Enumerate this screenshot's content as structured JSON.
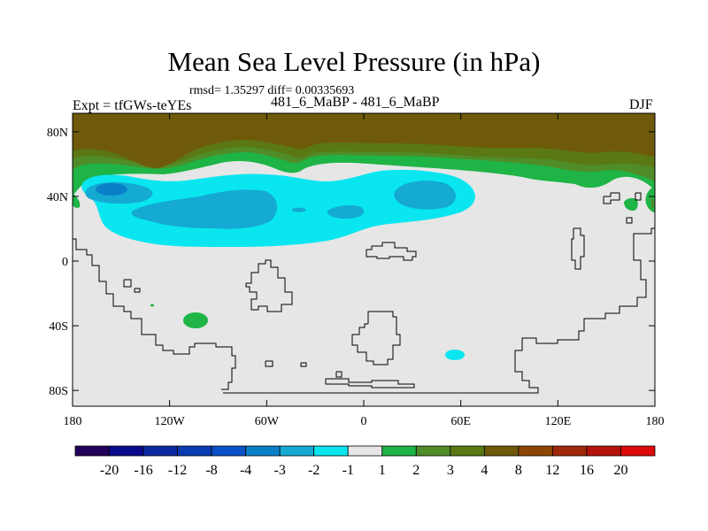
{
  "title": "Mean Sea Level Pressure (in hPa)",
  "stats": "rmsd= 1.35297 diff= 0.00335693",
  "expt": "Expt = tfGWs-teYEs",
  "subtitle": "481_6_MaBP - 481_6_MaBP",
  "season": "DJF",
  "lat_ticks": [
    {
      "label": "80N",
      "lat": 80
    },
    {
      "label": "40N",
      "lat": 40
    },
    {
      "label": "0",
      "lat": 0
    },
    {
      "label": "40S",
      "lat": -40
    },
    {
      "label": "80S",
      "lat": -80
    }
  ],
  "lon_ticks": [
    {
      "label": "180",
      "lon": -180
    },
    {
      "label": "120W",
      "lon": -120
    },
    {
      "label": "60W",
      "lon": -60
    },
    {
      "label": "0",
      "lon": 0
    },
    {
      "label": "60E",
      "lon": 60
    },
    {
      "label": "120E",
      "lon": 120
    },
    {
      "label": "180",
      "lon": 180
    }
  ],
  "colorbar": {
    "colors": [
      "#22005a",
      "#0a0a8c",
      "#0a28a0",
      "#0a3cb4",
      "#0a50c8",
      "#0a80c8",
      "#14aad2",
      "#0ae6f0",
      "#e6e6e6",
      "#1eb446",
      "#508c28",
      "#5a7814",
      "#6e5a0a",
      "#8c4600",
      "#a0280a",
      "#b4140a",
      "#dc0a0a"
    ],
    "labels": [
      "-20",
      "-16",
      "-12",
      "-8",
      "-4",
      "-3",
      "-2",
      "-1",
      "1",
      "2",
      "3",
      "4",
      "8",
      "12",
      "16",
      "20"
    ]
  },
  "field_colors": {
    "background": "#e6e6e6",
    "cyan": "#0ae6f0",
    "light_blue": "#14aad2",
    "blue": "#0a80c8",
    "green": "#1eb446",
    "olive": "#508c28",
    "dark_olive": "#5a7814",
    "brown": "#6e5a0a",
    "coast": "#000000"
  }
}
